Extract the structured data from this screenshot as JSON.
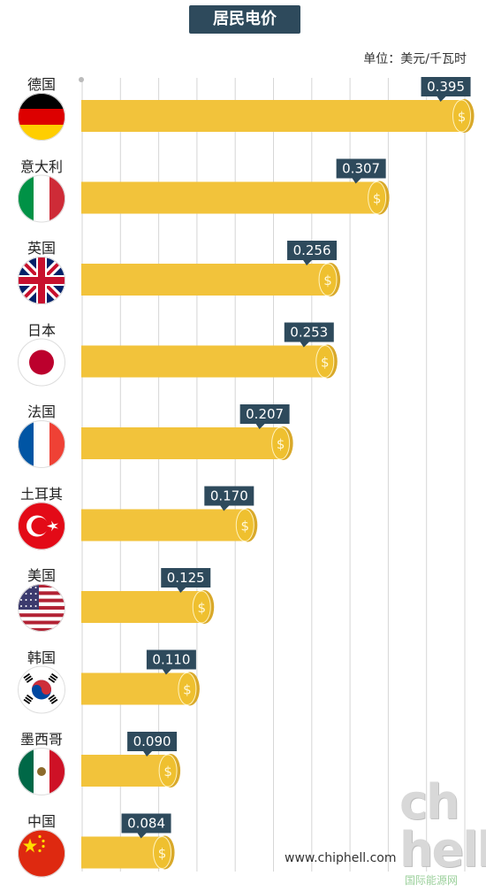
{
  "title": "居民电价",
  "unit": "单位：美元/千瓦时",
  "colors": {
    "bar": "#f2c33b",
    "coin": "#efc02f",
    "label_bg": "#2e4a5c",
    "grid": "#d6d6d6"
  },
  "chart_data": {
    "type": "bar",
    "orientation": "horizontal",
    "title": "居民电价",
    "unit": "单位：美元/千瓦时",
    "categories": [
      "德国",
      "意大利",
      "英国",
      "日本",
      "法国",
      "土耳其",
      "美国",
      "韩国",
      "墨西哥",
      "中国"
    ],
    "values": [
      0.395,
      0.307,
      0.256,
      0.253,
      0.207,
      0.17,
      0.125,
      0.11,
      0.09,
      0.084
    ],
    "value_labels": [
      "0.395",
      "0.307",
      "0.256",
      "0.253",
      "0.207",
      "0.170",
      "0.125",
      "0.110",
      "0.090",
      "0.084"
    ],
    "flag_icons": [
      "germany-flag-icon",
      "italy-flag-icon",
      "uk-flag-icon",
      "japan-flag-icon",
      "france-flag-icon",
      "turkey-flag-icon",
      "usa-flag-icon",
      "korea-flag-icon",
      "mexico-flag-icon",
      "china-flag-icon"
    ],
    "xlim": [
      0,
      0.41
    ],
    "grid": true
  },
  "watermark": {
    "logo": "chip hell",
    "url": "www.chiphell.com",
    "sub": "国际能源网"
  }
}
